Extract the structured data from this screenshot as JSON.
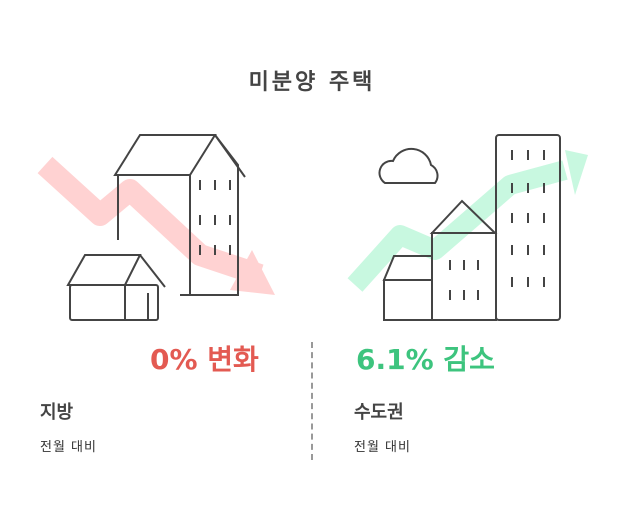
{
  "title": "미분양 주택",
  "colors": {
    "decrease": "#e35a52",
    "increase": "#3dc47e",
    "line": "#444444"
  },
  "left": {
    "stat": "0% 변화",
    "region": "지방",
    "comparison": "전월 대비",
    "icon": "houses-down-arrow-icon"
  },
  "right": {
    "stat": "6.1% 감소",
    "region": "수도권",
    "comparison": "전월 대비",
    "icon": "buildings-up-arrow-icon"
  }
}
